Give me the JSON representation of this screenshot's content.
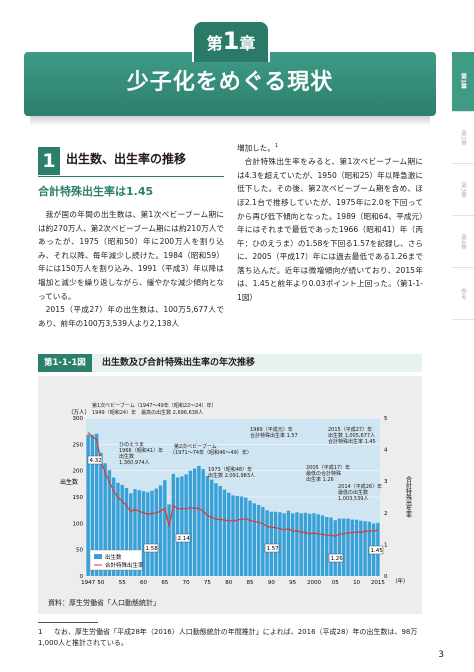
{
  "chapter": {
    "prefix": "第",
    "number": "1",
    "suffix": "章",
    "title": "少子化をめぐる現状"
  },
  "side_tabs": [
    {
      "label": "第1章",
      "active": true
    },
    {
      "label": "第2章",
      "active": false
    },
    {
      "label": "第3章",
      "active": false
    },
    {
      "label": "第4章",
      "active": false
    },
    {
      "label": "参考",
      "active": false
    }
  ],
  "section": {
    "number": "1",
    "title": "出生数、出生率の推移"
  },
  "subhead": "合計特殊出生率は1.45",
  "left_paragraphs": [
    "我が国の年間の出生数は、第1次ベビーブーム期には約270万人、第2次ベビーブーム期には約210万人であったが、1975（昭和50）年に200万人を割り込み、それ以降、毎年減少し続けた。1984（昭和59）年には150万人を割り込み、1991（平成3）年以降は増加と減少を繰り返しながら、緩やかな減少傾向となっている。",
    "2015（平成27）年の出生数は、100万5,677人であり、前年の100万3,539人より2,138人"
  ],
  "right_first_line": "増加した。",
  "right_footnote_ref": "1",
  "right_paragraph": "合計特殊出生率をみると、第1次ベビーブーム期には4.3を超えていたが、1950（昭和25）年以降急激に低下した。その後、第2次ベビーブーム期を含め、ほぼ2.1台で推移していたが、1975年に2.0を下回ってから再び低下傾向となった。1989（昭和64、平成元）年にはそれまで最低であった1966（昭和41）年（丙午：ひのえうま）の1.58を下回る1.57を記録し、さらに、2005（平成17）年には過去最低である1.26まで落ち込んだ。近年は微増傾向が続いており、2015年は、1.45と前年より0.03ポイント上回った。（第1-1-1図）",
  "figure": {
    "label": "第1-1-1図",
    "title": "出生数及び合計特殊出生率の年次推移",
    "source": "資料：厚生労働省「人口動態統計」"
  },
  "chart_data": {
    "type": "bar+line",
    "y_left_unit": "（万人）",
    "y_left_label": "出生数",
    "y_right_label": "合計特殊出生率",
    "x_suffix": "（年）",
    "y_left_ticks": [
      0,
      50,
      100,
      150,
      200,
      250,
      300
    ],
    "y_right_ticks": [
      0,
      1,
      2,
      3,
      4,
      5
    ],
    "x_ticks": [
      1947,
      50,
      55,
      60,
      65,
      70,
      75,
      80,
      85,
      90,
      95,
      2000,
      "05",
      10,
      2015
    ],
    "years": [
      1947,
      1948,
      1949,
      1950,
      1951,
      1952,
      1953,
      1954,
      1955,
      1956,
      1957,
      1958,
      1959,
      1960,
      1961,
      1962,
      1963,
      1964,
      1965,
      1966,
      1967,
      1968,
      1969,
      1970,
      1971,
      1972,
      1973,
      1974,
      1975,
      1976,
      1977,
      1978,
      1979,
      1980,
      1981,
      1982,
      1983,
      1984,
      1985,
      1986,
      1987,
      1988,
      1989,
      1990,
      1991,
      1992,
      1993,
      1994,
      1995,
      1996,
      1997,
      1998,
      1999,
      2000,
      2001,
      2002,
      2003,
      2004,
      2005,
      2006,
      2007,
      2008,
      2009,
      2010,
      2011,
      2012,
      2013,
      2014,
      2015
    ],
    "births": [
      268,
      268,
      270,
      234,
      214,
      201,
      187,
      177,
      173,
      167,
      157,
      165,
      163,
      161,
      159,
      162,
      166,
      172,
      182,
      136,
      194,
      187,
      189,
      193,
      200,
      204,
      209,
      203,
      190,
      183,
      176,
      171,
      164,
      158,
      153,
      152,
      151,
      149,
      143,
      138,
      135,
      131,
      125,
      122,
      122,
      121,
      119,
      124,
      119,
      121,
      119,
      120,
      118,
      119,
      117,
      115,
      112,
      111,
      106,
      109,
      109,
      109,
      107,
      107,
      105,
      104,
      103,
      100,
      101
    ],
    "tfr": [
      4.54,
      4.4,
      4.32,
      3.65,
      3.26,
      2.98,
      2.69,
      2.48,
      2.37,
      2.22,
      2.04,
      2.11,
      2.04,
      2.0,
      1.96,
      1.98,
      2.0,
      2.05,
      2.14,
      1.58,
      2.23,
      2.13,
      2.13,
      2.13,
      2.16,
      2.14,
      2.14,
      2.05,
      1.91,
      1.85,
      1.8,
      1.79,
      1.77,
      1.75,
      1.74,
      1.77,
      1.8,
      1.81,
      1.76,
      1.72,
      1.69,
      1.66,
      1.57,
      1.54,
      1.53,
      1.5,
      1.46,
      1.5,
      1.42,
      1.43,
      1.39,
      1.38,
      1.34,
      1.36,
      1.33,
      1.32,
      1.29,
      1.29,
      1.26,
      1.32,
      1.34,
      1.37,
      1.37,
      1.39,
      1.39,
      1.41,
      1.43,
      1.42,
      1.45
    ],
    "legend": [
      "出生数",
      "合計特殊出生率"
    ],
    "annotations": {
      "first_boom": "第1次ベビーブーム（1947～49年（昭和22～24）年）",
      "first_boom_max": "1949（昭和24）年　最高の出生数 2,696,638人",
      "hinoeuma": [
        "ひのえうま",
        "1966（昭和41）年",
        "出生数",
        "1,360,974人"
      ],
      "second_boom": [
        "第2次ベビーブーム",
        "（1971～74年（昭和46～49）年）"
      ],
      "y1973": [
        "1973（昭和48）年",
        "出生数 2,091,983人"
      ],
      "y1989": [
        "1989（平成元）年",
        "合計特殊出生率 1.57"
      ],
      "y2005": [
        "2005（平成17）年",
        "最低の合計特殊",
        "出生率 1.26"
      ],
      "y2015": [
        "2015（平成27）年",
        "出生数 1,005,677人",
        "合計特殊出生率 1.45"
      ],
      "y2014": [
        "2014（平成26）年",
        "最低の出生数",
        "1,003,539人"
      ],
      "values": {
        "v1949": "4.32",
        "v1966": "1.58",
        "v1973": "2.14",
        "v1989": "1.57",
        "v2005": "1.26",
        "v2015": "1.45"
      }
    }
  },
  "footnote": {
    "mark": "1",
    "text": "なお、厚生労働省「平成28年（2016）人口動態統計の年間推計」によれば、2016（平成28）年の出生数は、98万1,000人と推計されている。"
  },
  "page_number": "3"
}
